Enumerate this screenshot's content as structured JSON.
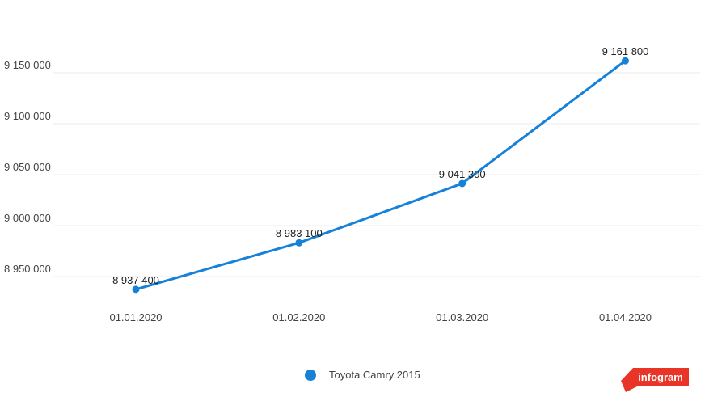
{
  "chart_data": {
    "type": "line",
    "title": "",
    "xlabel": "",
    "ylabel": "",
    "grid": "horizontal-only",
    "legend_position": "bottom-center",
    "categories": [
      "01.01.2020",
      "01.02.2020",
      "01.03.2020",
      "01.04.2020"
    ],
    "series": [
      {
        "name": "Toyota Camry 2015",
        "color": "#1681d8",
        "values": [
          8937400,
          8983100,
          9041300,
          9161800
        ],
        "point_labels": [
          "8 937 400",
          "8 983 100",
          "9 041 300",
          "9 161 800"
        ]
      }
    ],
    "y_ticks": [
      {
        "value": 9150000,
        "label": "9 150 000"
      },
      {
        "value": 9100000,
        "label": "9 100 000"
      },
      {
        "value": 9050000,
        "label": "9 050 000"
      },
      {
        "value": 9000000,
        "label": "9 000 000"
      },
      {
        "value": 8950000,
        "label": "8 950 000"
      }
    ],
    "ylim": [
      8925000,
      9220000
    ]
  },
  "legend": {
    "series_label": "Toyota Camry 2015",
    "marker_color": "#1681d8"
  },
  "branding": {
    "label": "infogram",
    "background": "#e93528",
    "text_color": "#ffffff"
  },
  "colors": {
    "line": "#1681d8",
    "gridline": "#ebebeb",
    "axis_text": "#424242",
    "point_label_text": "#212121",
    "background": "#ffffff"
  }
}
